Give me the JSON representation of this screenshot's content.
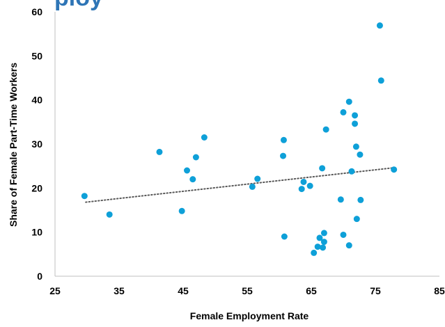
{
  "chart_data": {
    "type": "scatter",
    "title_fragment": "ploy",
    "xlabel": "Female Employment Rate",
    "ylabel": "Share of Female Part-Time Workers",
    "xlim": [
      25,
      85
    ],
    "ylim": [
      0,
      60
    ],
    "x_ticks": [
      25,
      35,
      45,
      55,
      65,
      75,
      85
    ],
    "y_ticks": [
      0,
      10,
      20,
      30,
      40,
      50,
      60
    ],
    "grid": false,
    "trendline": {
      "style": "dotted",
      "color": "#595959",
      "from": [
        29.8,
        16.8
      ],
      "to": [
        77.8,
        24.6
      ]
    },
    "point_color": "#0ea0d8",
    "points": [
      {
        "x": 29.6,
        "y": 18.2
      },
      {
        "x": 33.5,
        "y": 14.0
      },
      {
        "x": 41.3,
        "y": 28.2
      },
      {
        "x": 44.8,
        "y": 14.8
      },
      {
        "x": 45.6,
        "y": 24.0
      },
      {
        "x": 46.5,
        "y": 22.0
      },
      {
        "x": 47.0,
        "y": 27.0
      },
      {
        "x": 48.3,
        "y": 31.5
      },
      {
        "x": 55.8,
        "y": 20.3
      },
      {
        "x": 56.6,
        "y": 22.1
      },
      {
        "x": 60.7,
        "y": 30.9
      },
      {
        "x": 60.6,
        "y": 27.3
      },
      {
        "x": 60.8,
        "y": 9.0
      },
      {
        "x": 63.5,
        "y": 19.8
      },
      {
        "x": 63.8,
        "y": 21.4
      },
      {
        "x": 64.8,
        "y": 20.5
      },
      {
        "x": 65.4,
        "y": 5.3
      },
      {
        "x": 66.0,
        "y": 6.7
      },
      {
        "x": 66.3,
        "y": 8.7
      },
      {
        "x": 66.7,
        "y": 24.5
      },
      {
        "x": 66.8,
        "y": 6.5
      },
      {
        "x": 67.0,
        "y": 7.8
      },
      {
        "x": 67.0,
        "y": 9.8
      },
      {
        "x": 67.3,
        "y": 33.3
      },
      {
        "x": 69.6,
        "y": 17.4
      },
      {
        "x": 70.0,
        "y": 37.2
      },
      {
        "x": 70.0,
        "y": 9.4
      },
      {
        "x": 70.9,
        "y": 39.6
      },
      {
        "x": 70.9,
        "y": 7.0
      },
      {
        "x": 71.3,
        "y": 23.8
      },
      {
        "x": 71.8,
        "y": 36.5
      },
      {
        "x": 71.8,
        "y": 34.6
      },
      {
        "x": 72.0,
        "y": 29.4
      },
      {
        "x": 72.1,
        "y": 13.0
      },
      {
        "x": 72.6,
        "y": 27.6
      },
      {
        "x": 72.7,
        "y": 17.3
      },
      {
        "x": 75.7,
        "y": 56.9
      },
      {
        "x": 75.9,
        "y": 44.4
      },
      {
        "x": 77.9,
        "y": 24.2
      }
    ]
  }
}
